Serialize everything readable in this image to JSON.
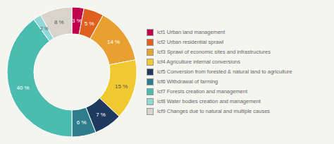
{
  "chart_data": {
    "type": "pie",
    "categories": [
      "lcf1 Urban land management",
      "lcf2 Urban residential sprawl",
      "lcf3 Sprawl of economic sites and infrastructures",
      "lcf4 Agriculture internal conversions",
      "lcf5 Conversion from forested & natural land to agriculture",
      "lcf6 Withdrawal of farming",
      "lcf7 Forests creation and management",
      "lcf8 Water bodies creation and management",
      "lcf9 Changes due to natural and multiple causes"
    ],
    "values": [
      3,
      5,
      14,
      15,
      7,
      6,
      40,
      2,
      8
    ],
    "value_labels": [
      "3 %",
      "5 %",
      "14 %",
      "15 %",
      "7 %",
      "6 %",
      "40 %",
      "2 %",
      "8 %"
    ],
    "colors": [
      "#c0004a",
      "#e06020",
      "#e8a030",
      "#f0c830",
      "#1e3a5f",
      "#2e7d8c",
      "#4abcb0",
      "#90d8d8",
      "#d8d4cc"
    ],
    "data_labels": true,
    "legend": "right"
  }
}
